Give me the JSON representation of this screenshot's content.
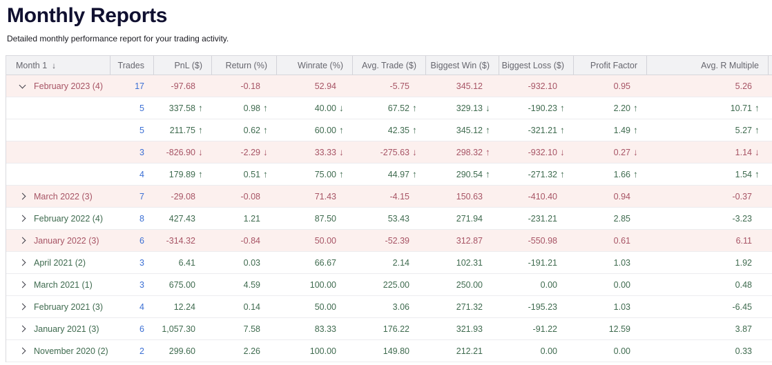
{
  "page": {
    "title": "Monthly Reports",
    "subtitle": "Detailed monthly performance report for your trading activity."
  },
  "table": {
    "sort_icon": "↓",
    "columns": [
      "Month 1",
      "Trades",
      "PnL ($)",
      "Return (%)",
      "Winrate (%)",
      "Avg. Trade ($)",
      "Biggest Win ($)",
      "Biggest Loss ($)",
      "Profit Factor",
      "Avg. R Multiple"
    ],
    "rows": [
      {
        "kind": "month",
        "expanded": true,
        "label": "February 2023 (4)",
        "tone": "neg",
        "trades": "17",
        "values": [
          {
            "v": "-97.68"
          },
          {
            "v": "-0.18"
          },
          {
            "v": "52.94"
          },
          {
            "v": "-5.75"
          },
          {
            "v": "345.12"
          },
          {
            "v": "-932.10"
          },
          {
            "v": "0.95"
          },
          {
            "v": "5.26"
          }
        ]
      },
      {
        "kind": "week",
        "tone": "pos",
        "trades": "5",
        "values": [
          {
            "v": "337.58",
            "a": "up"
          },
          {
            "v": "0.98",
            "a": "up"
          },
          {
            "v": "40.00",
            "a": "down"
          },
          {
            "v": "67.52",
            "a": "up"
          },
          {
            "v": "329.13",
            "a": "down"
          },
          {
            "v": "-190.23",
            "a": "up"
          },
          {
            "v": "2.20",
            "a": "up"
          },
          {
            "v": "10.71",
            "a": "up"
          }
        ]
      },
      {
        "kind": "week",
        "tone": "pos",
        "trades": "5",
        "values": [
          {
            "v": "211.75",
            "a": "up"
          },
          {
            "v": "0.62",
            "a": "up"
          },
          {
            "v": "60.00",
            "a": "up"
          },
          {
            "v": "42.35",
            "a": "up"
          },
          {
            "v": "345.12",
            "a": "up"
          },
          {
            "v": "-321.21",
            "a": "up"
          },
          {
            "v": "1.49",
            "a": "up"
          },
          {
            "v": "5.27",
            "a": "up"
          }
        ]
      },
      {
        "kind": "week",
        "tone": "neg",
        "trades": "3",
        "values": [
          {
            "v": "-826.90",
            "a": "down"
          },
          {
            "v": "-2.29",
            "a": "down"
          },
          {
            "v": "33.33",
            "a": "down"
          },
          {
            "v": "-275.63",
            "a": "down"
          },
          {
            "v": "298.32",
            "a": "up"
          },
          {
            "v": "-932.10",
            "a": "down"
          },
          {
            "v": "0.27",
            "a": "down"
          },
          {
            "v": "1.14",
            "a": "down"
          }
        ]
      },
      {
        "kind": "week",
        "tone": "pos",
        "trades": "4",
        "values": [
          {
            "v": "179.89",
            "a": "up"
          },
          {
            "v": "0.51",
            "a": "up"
          },
          {
            "v": "75.00",
            "a": "up"
          },
          {
            "v": "44.97",
            "a": "up"
          },
          {
            "v": "290.54",
            "a": "up"
          },
          {
            "v": "-271.32",
            "a": "up"
          },
          {
            "v": "1.66",
            "a": "up"
          },
          {
            "v": "1.54",
            "a": "up"
          }
        ]
      },
      {
        "kind": "month",
        "expanded": false,
        "label": "March 2022 (3)",
        "tone": "neg",
        "trades": "7",
        "values": [
          {
            "v": "-29.08"
          },
          {
            "v": "-0.08"
          },
          {
            "v": "71.43"
          },
          {
            "v": "-4.15"
          },
          {
            "v": "150.63"
          },
          {
            "v": "-410.40"
          },
          {
            "v": "0.94"
          },
          {
            "v": "-0.37"
          }
        ]
      },
      {
        "kind": "month",
        "expanded": false,
        "label": "February 2022 (4)",
        "tone": "pos",
        "trades": "8",
        "values": [
          {
            "v": "427.43"
          },
          {
            "v": "1.21"
          },
          {
            "v": "87.50"
          },
          {
            "v": "53.43"
          },
          {
            "v": "271.94"
          },
          {
            "v": "-231.21"
          },
          {
            "v": "2.85"
          },
          {
            "v": "-3.23"
          }
        ]
      },
      {
        "kind": "month",
        "expanded": false,
        "label": "January 2022 (3)",
        "tone": "neg",
        "trades": "6",
        "values": [
          {
            "v": "-314.32"
          },
          {
            "v": "-0.84"
          },
          {
            "v": "50.00"
          },
          {
            "v": "-52.39"
          },
          {
            "v": "312.87"
          },
          {
            "v": "-550.98"
          },
          {
            "v": "0.61"
          },
          {
            "v": "6.11"
          }
        ]
      },
      {
        "kind": "month",
        "expanded": false,
        "label": "April 2021 (2)",
        "tone": "pos",
        "trades": "3",
        "values": [
          {
            "v": "6.41"
          },
          {
            "v": "0.03"
          },
          {
            "v": "66.67"
          },
          {
            "v": "2.14"
          },
          {
            "v": "102.31"
          },
          {
            "v": "-191.21"
          },
          {
            "v": "1.03"
          },
          {
            "v": "1.92"
          }
        ]
      },
      {
        "kind": "month",
        "expanded": false,
        "label": "March 2021 (1)",
        "tone": "pos",
        "trades": "3",
        "values": [
          {
            "v": "675.00"
          },
          {
            "v": "4.59"
          },
          {
            "v": "100.00"
          },
          {
            "v": "225.00"
          },
          {
            "v": "250.00"
          },
          {
            "v": "0.00"
          },
          {
            "v": "0.00"
          },
          {
            "v": "0.48"
          }
        ]
      },
      {
        "kind": "month",
        "expanded": false,
        "label": "February 2021 (3)",
        "tone": "pos",
        "trades": "4",
        "values": [
          {
            "v": "12.24"
          },
          {
            "v": "0.14"
          },
          {
            "v": "50.00"
          },
          {
            "v": "3.06"
          },
          {
            "v": "271.32"
          },
          {
            "v": "-195.23"
          },
          {
            "v": "1.03"
          },
          {
            "v": "-6.45"
          }
        ]
      },
      {
        "kind": "month",
        "expanded": false,
        "label": "January 2021 (3)",
        "tone": "pos",
        "trades": "6",
        "values": [
          {
            "v": "1,057.30"
          },
          {
            "v": "7.58"
          },
          {
            "v": "83.33"
          },
          {
            "v": "176.22"
          },
          {
            "v": "321.93"
          },
          {
            "v": "-91.22"
          },
          {
            "v": "12.59"
          },
          {
            "v": "3.87"
          }
        ]
      },
      {
        "kind": "month",
        "expanded": false,
        "label": "November 2020 (2)",
        "tone": "pos",
        "trades": "2",
        "values": [
          {
            "v": "299.60"
          },
          {
            "v": "2.26"
          },
          {
            "v": "100.00"
          },
          {
            "v": "149.80"
          },
          {
            "v": "212.21"
          },
          {
            "v": "0.00"
          },
          {
            "v": "0.00"
          },
          {
            "v": "0.33"
          }
        ]
      }
    ]
  },
  "colors": {
    "title_text": "#101030",
    "header_bg": "#f2f2f4",
    "header_text": "#66666e",
    "positive_text": "#3e6a4e",
    "negative_text": "#a75465",
    "negative_row_bg": "#fcf0ee",
    "trades_link": "#3b6fd4"
  }
}
